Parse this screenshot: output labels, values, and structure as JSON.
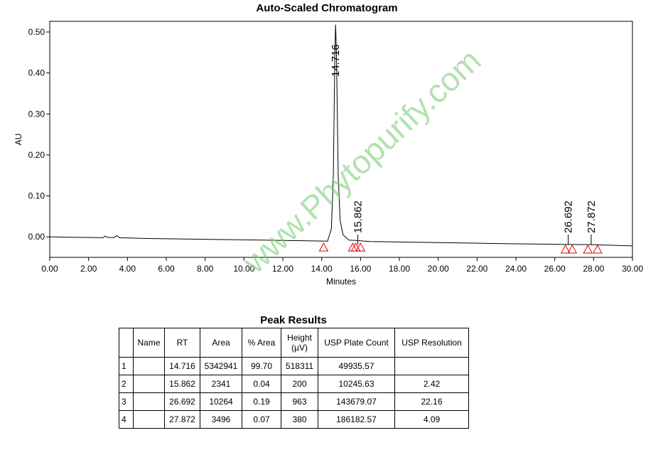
{
  "chart_data": {
    "type": "line",
    "title": "Auto-Scaled Chromatogram",
    "x_label": "Minutes",
    "y_label": "AU",
    "color": "#000000",
    "x": [
      0,
      1,
      2,
      2.75,
      2.85,
      2.95,
      3.3,
      3.45,
      3.6,
      5,
      8,
      11,
      13,
      14.3,
      14.5,
      14.6,
      14.68,
      14.716,
      14.76,
      14.85,
      14.95,
      15.1,
      15.4,
      15.862,
      16.5,
      20,
      24,
      26.692,
      27.872,
      30
    ],
    "values": [
      0.0,
      -0.001,
      -0.0015,
      -0.002,
      0.002,
      -0.001,
      -0.002,
      0.003,
      -0.002,
      -0.004,
      -0.006,
      -0.008,
      -0.0095,
      -0.0105,
      0.02,
      0.15,
      0.45,
      0.518,
      0.45,
      0.15,
      0.04,
      0.005,
      -0.008,
      -0.009,
      -0.0115,
      -0.014,
      -0.017,
      -0.0185,
      -0.019,
      -0.022
    ],
    "peaks": [
      14.716,
      15.862,
      26.692,
      27.872
    ],
    "integration_marks": {
      "color": "#e00000",
      "x": [
        14.1,
        15.6,
        15.75,
        16.0,
        26.55,
        26.9,
        27.7,
        28.2
      ],
      "y": [
        -0.026,
        -0.026,
        -0.026,
        -0.026,
        -0.031,
        -0.031,
        -0.031,
        -0.031
      ]
    },
    "xlim": [
      0,
      30
    ],
    "ylim": [
      -0.05,
      0.526
    ],
    "xticks": [
      {
        "value": 0,
        "label": "0.00"
      },
      {
        "value": 2,
        "label": "2.00"
      },
      {
        "value": 4,
        "label": "4.00"
      },
      {
        "value": 6,
        "label": "6.00"
      },
      {
        "value": 8,
        "label": "8.00"
      },
      {
        "value": 10,
        "label": "10.00"
      },
      {
        "value": 12,
        "label": "12.00"
      },
      {
        "value": 14,
        "label": "14.00"
      },
      {
        "value": 16,
        "label": "16.00"
      },
      {
        "value": 18,
        "label": "18.00"
      },
      {
        "value": 20,
        "label": "20.00"
      },
      {
        "value": 22,
        "label": "22.00"
      },
      {
        "value": 24,
        "label": "24.00"
      },
      {
        "value": 26,
        "label": "26.00"
      },
      {
        "value": 28,
        "label": "28.00"
      },
      {
        "value": 30,
        "label": "30.00"
      }
    ],
    "yticks": [
      {
        "value": 0,
        "label": "0.00"
      },
      {
        "value": 0.1,
        "label": "0.10"
      },
      {
        "value": 0.2,
        "label": "0.20"
      },
      {
        "value": 0.3,
        "label": "0.30"
      },
      {
        "value": 0.4,
        "label": "0.40"
      },
      {
        "value": 0.5,
        "label": "0.50"
      }
    ]
  },
  "watermark": "www.Phytopurify.com",
  "table": {
    "title": "Peak Results",
    "header": [
      "",
      "Name",
      "RT",
      "Area",
      "% Area",
      "Height (µV)",
      "USP Plate Count",
      "USP Resolution"
    ],
    "rows": [
      [
        "1",
        null,
        "14.716",
        "5342941",
        "99.70",
        "518311",
        "49935.57",
        null
      ],
      [
        "2",
        null,
        "15.862",
        "2341",
        "0.04",
        "200",
        "10245.63",
        "2.42"
      ],
      [
        "3",
        null,
        "26.692",
        "10264",
        "0.19",
        "963",
        "143679.07",
        "22.16"
      ],
      [
        "4",
        null,
        "27.872",
        "3496",
        "0.07",
        "380",
        "186182.57",
        "4.09"
      ]
    ]
  }
}
